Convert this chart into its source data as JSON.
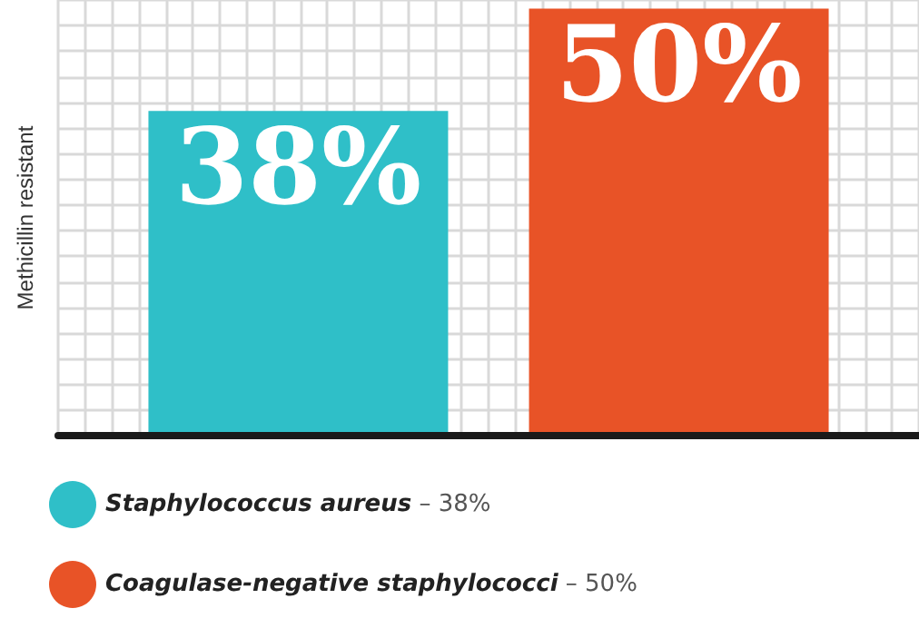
{
  "chart_data": {
    "type": "bar",
    "ylabel": "Methicillin resistant",
    "categories": [
      null
    ],
    "series": [
      {
        "name": "Staphylococcus aureus – 38%",
        "color": "#2fbfc8",
        "values": [
          38
        ],
        "value_labels": [
          "38%"
        ]
      },
      {
        "name": "Coagulase-negative staphylococci – 50%",
        "color": "#e85327",
        "values": [
          50
        ],
        "value_labels": [
          "50%"
        ]
      }
    ],
    "grid": true,
    "legend": "bottom left"
  }
}
